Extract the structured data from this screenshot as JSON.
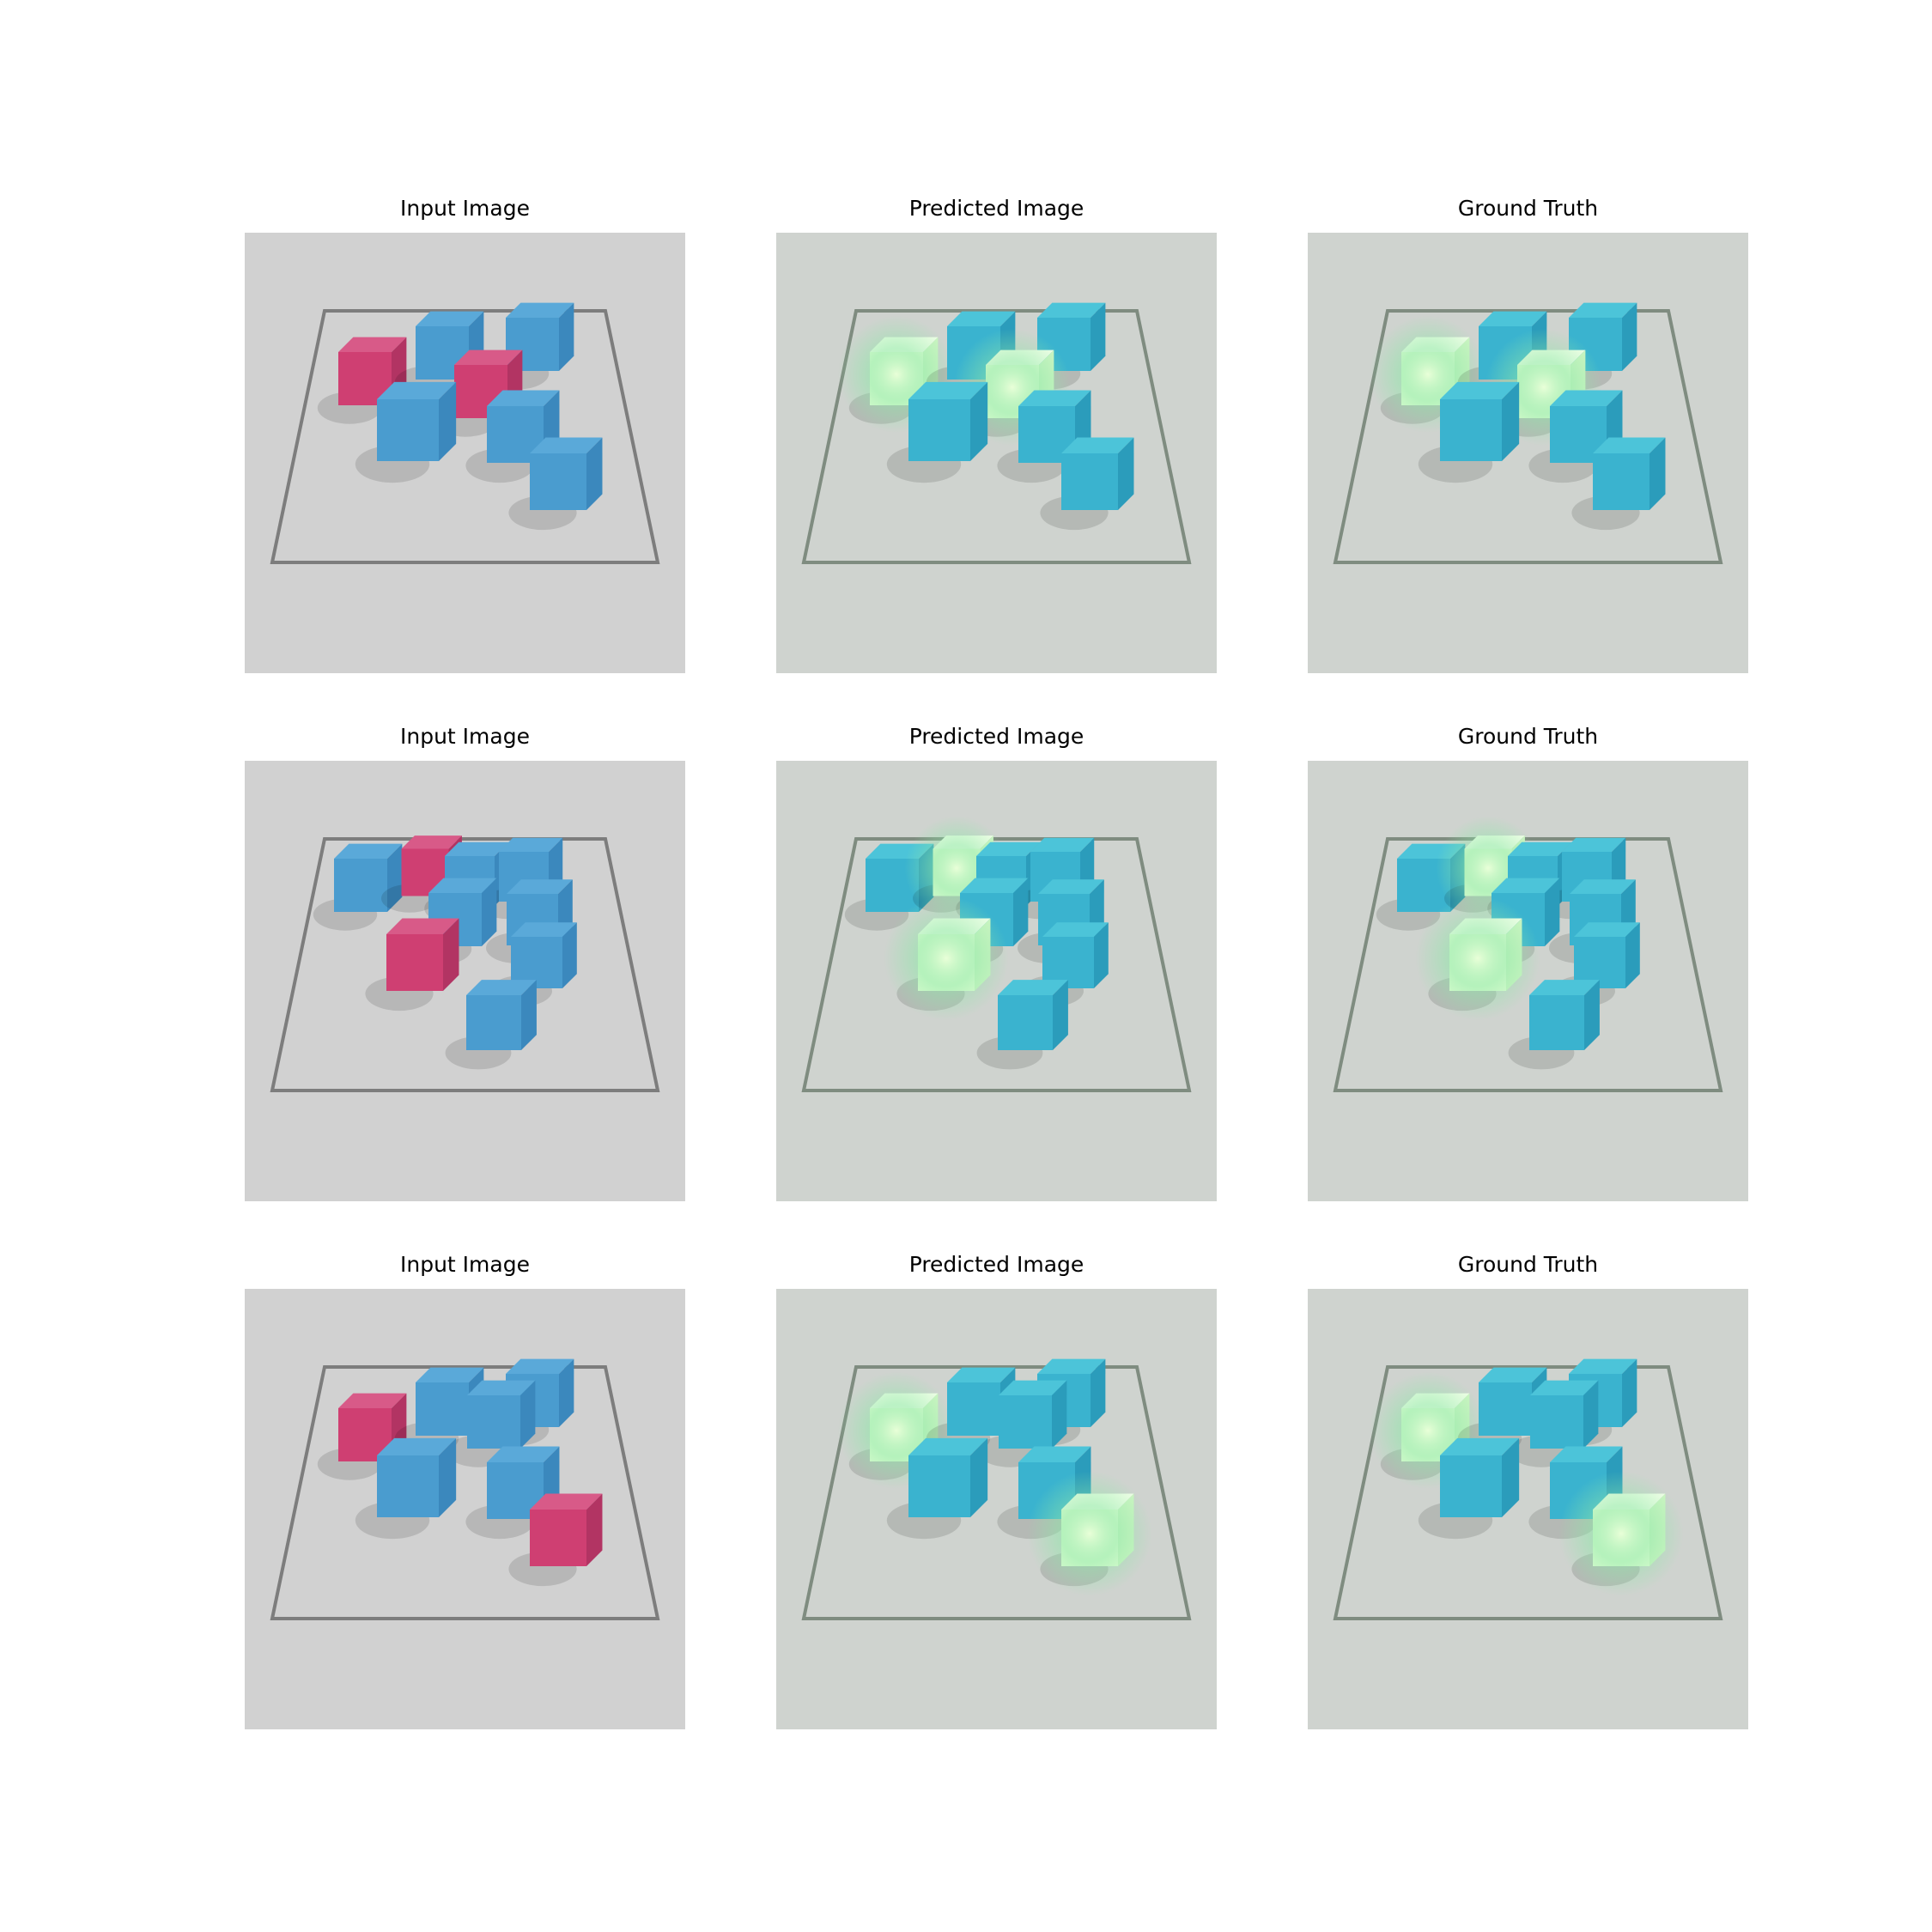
{
  "colors": {
    "background": "#d1d1d1",
    "tray_line": "#7d7d7d",
    "input_blue": "#4a9ccf",
    "input_red": "#cf3f72",
    "pred_cyan": "#3ab3cf",
    "glow": "#e9ffd8",
    "glow_green": "#8ee7a8"
  },
  "rows": [
    {
      "panels": [
        {
          "title": "Input Image"
        },
        {
          "title": "Predicted Image"
        },
        {
          "title": "Ground Truth"
        }
      ]
    },
    {
      "panels": [
        {
          "title": "Input Image"
        },
        {
          "title": "Predicted Image"
        },
        {
          "title": "Ground Truth"
        }
      ]
    },
    {
      "panels": [
        {
          "title": "Input Image"
        },
        {
          "title": "Predicted Image"
        },
        {
          "title": "Ground Truth"
        }
      ]
    }
  ]
}
